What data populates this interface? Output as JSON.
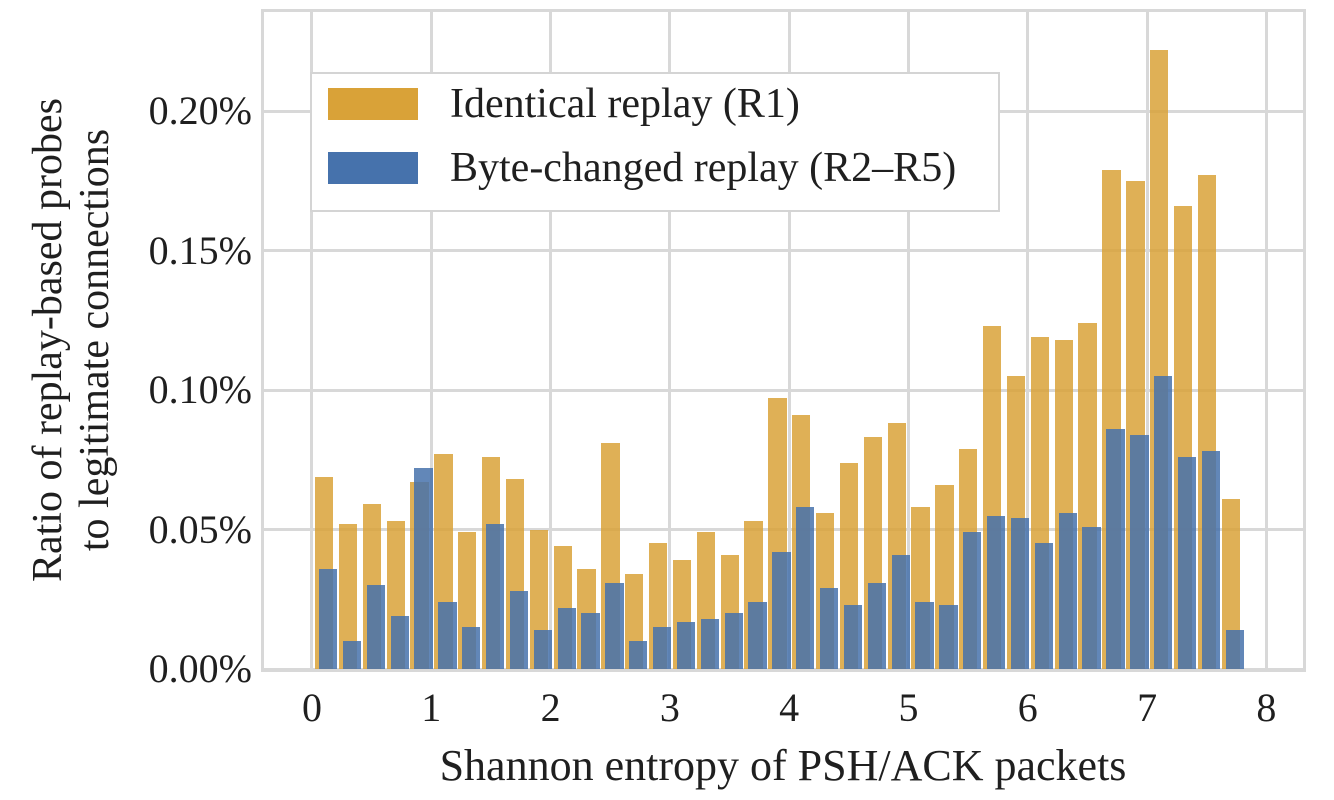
{
  "colors": {
    "background": "#FFFFFF",
    "grid": "#D8D8D8",
    "text": "#1F1F1F",
    "gold": "#D9A238",
    "blue": "#4672AC"
  },
  "chart_data": {
    "type": "bar",
    "subtype": "overlapping-histogram",
    "title": "",
    "xlabel": "Shannon entropy of PSH/ACK packets",
    "ylabel": "Ratio of replay-based probes to legitimate connections",
    "ylabel_lines": [
      "Ratio of replay-based probes",
      "to legitimate connections"
    ],
    "x_ticks": [
      0,
      1,
      2,
      3,
      4,
      5,
      6,
      7,
      8
    ],
    "y_ticks": [
      {
        "value": 0.0,
        "label": "0.00%"
      },
      {
        "value": 0.05,
        "label": "0.05%"
      },
      {
        "value": 0.1,
        "label": "0.10%"
      },
      {
        "value": 0.15,
        "label": "0.15%"
      },
      {
        "value": 0.2,
        "label": "0.20%"
      }
    ],
    "xlim": [
      -0.402,
      8.307
    ],
    "ylim_percent": [
      0,
      0.2355
    ],
    "grid": true,
    "legend_position": "upper-left",
    "bin_width": 0.2,
    "bin_start_x": [
      0.0,
      0.2,
      0.4,
      0.6,
      0.8,
      1.0,
      1.2,
      1.4,
      1.6,
      1.8,
      2.0,
      2.2,
      2.4,
      2.6,
      2.8,
      3.0,
      3.2,
      3.4,
      3.6,
      3.8,
      4.0,
      4.2,
      4.4,
      4.6,
      4.8,
      5.0,
      5.2,
      5.4,
      5.6,
      5.8,
      6.0,
      6.2,
      6.4,
      6.6,
      6.8,
      7.0,
      7.2,
      7.4,
      7.6
    ],
    "units": "percent",
    "series": [
      {
        "name": "Identical replay (R1)",
        "color": "#D9A238",
        "values": [
          0.069,
          0.052,
          0.059,
          0.053,
          0.067,
          0.077,
          0.049,
          0.076,
          0.068,
          0.05,
          0.044,
          0.036,
          0.081,
          0.034,
          0.045,
          0.039,
          0.049,
          0.041,
          0.053,
          0.097,
          0.091,
          0.056,
          0.074,
          0.083,
          0.088,
          0.058,
          0.066,
          0.079,
          0.123,
          0.105,
          0.119,
          0.118,
          0.124,
          0.179,
          0.175,
          0.222,
          0.166,
          0.177,
          0.061
        ]
      },
      {
        "name": "Byte-changed replay (R2–R5)",
        "color": "#4672AC",
        "values": [
          0.036,
          0.01,
          0.03,
          0.019,
          0.072,
          0.024,
          0.015,
          0.052,
          0.028,
          0.014,
          0.022,
          0.02,
          0.031,
          0.01,
          0.015,
          0.017,
          0.018,
          0.02,
          0.024,
          0.042,
          0.058,
          0.029,
          0.023,
          0.031,
          0.041,
          0.024,
          0.023,
          0.049,
          0.055,
          0.054,
          0.045,
          0.056,
          0.051,
          0.086,
          0.084,
          0.105,
          0.076,
          0.078,
          0.014
        ]
      }
    ]
  }
}
